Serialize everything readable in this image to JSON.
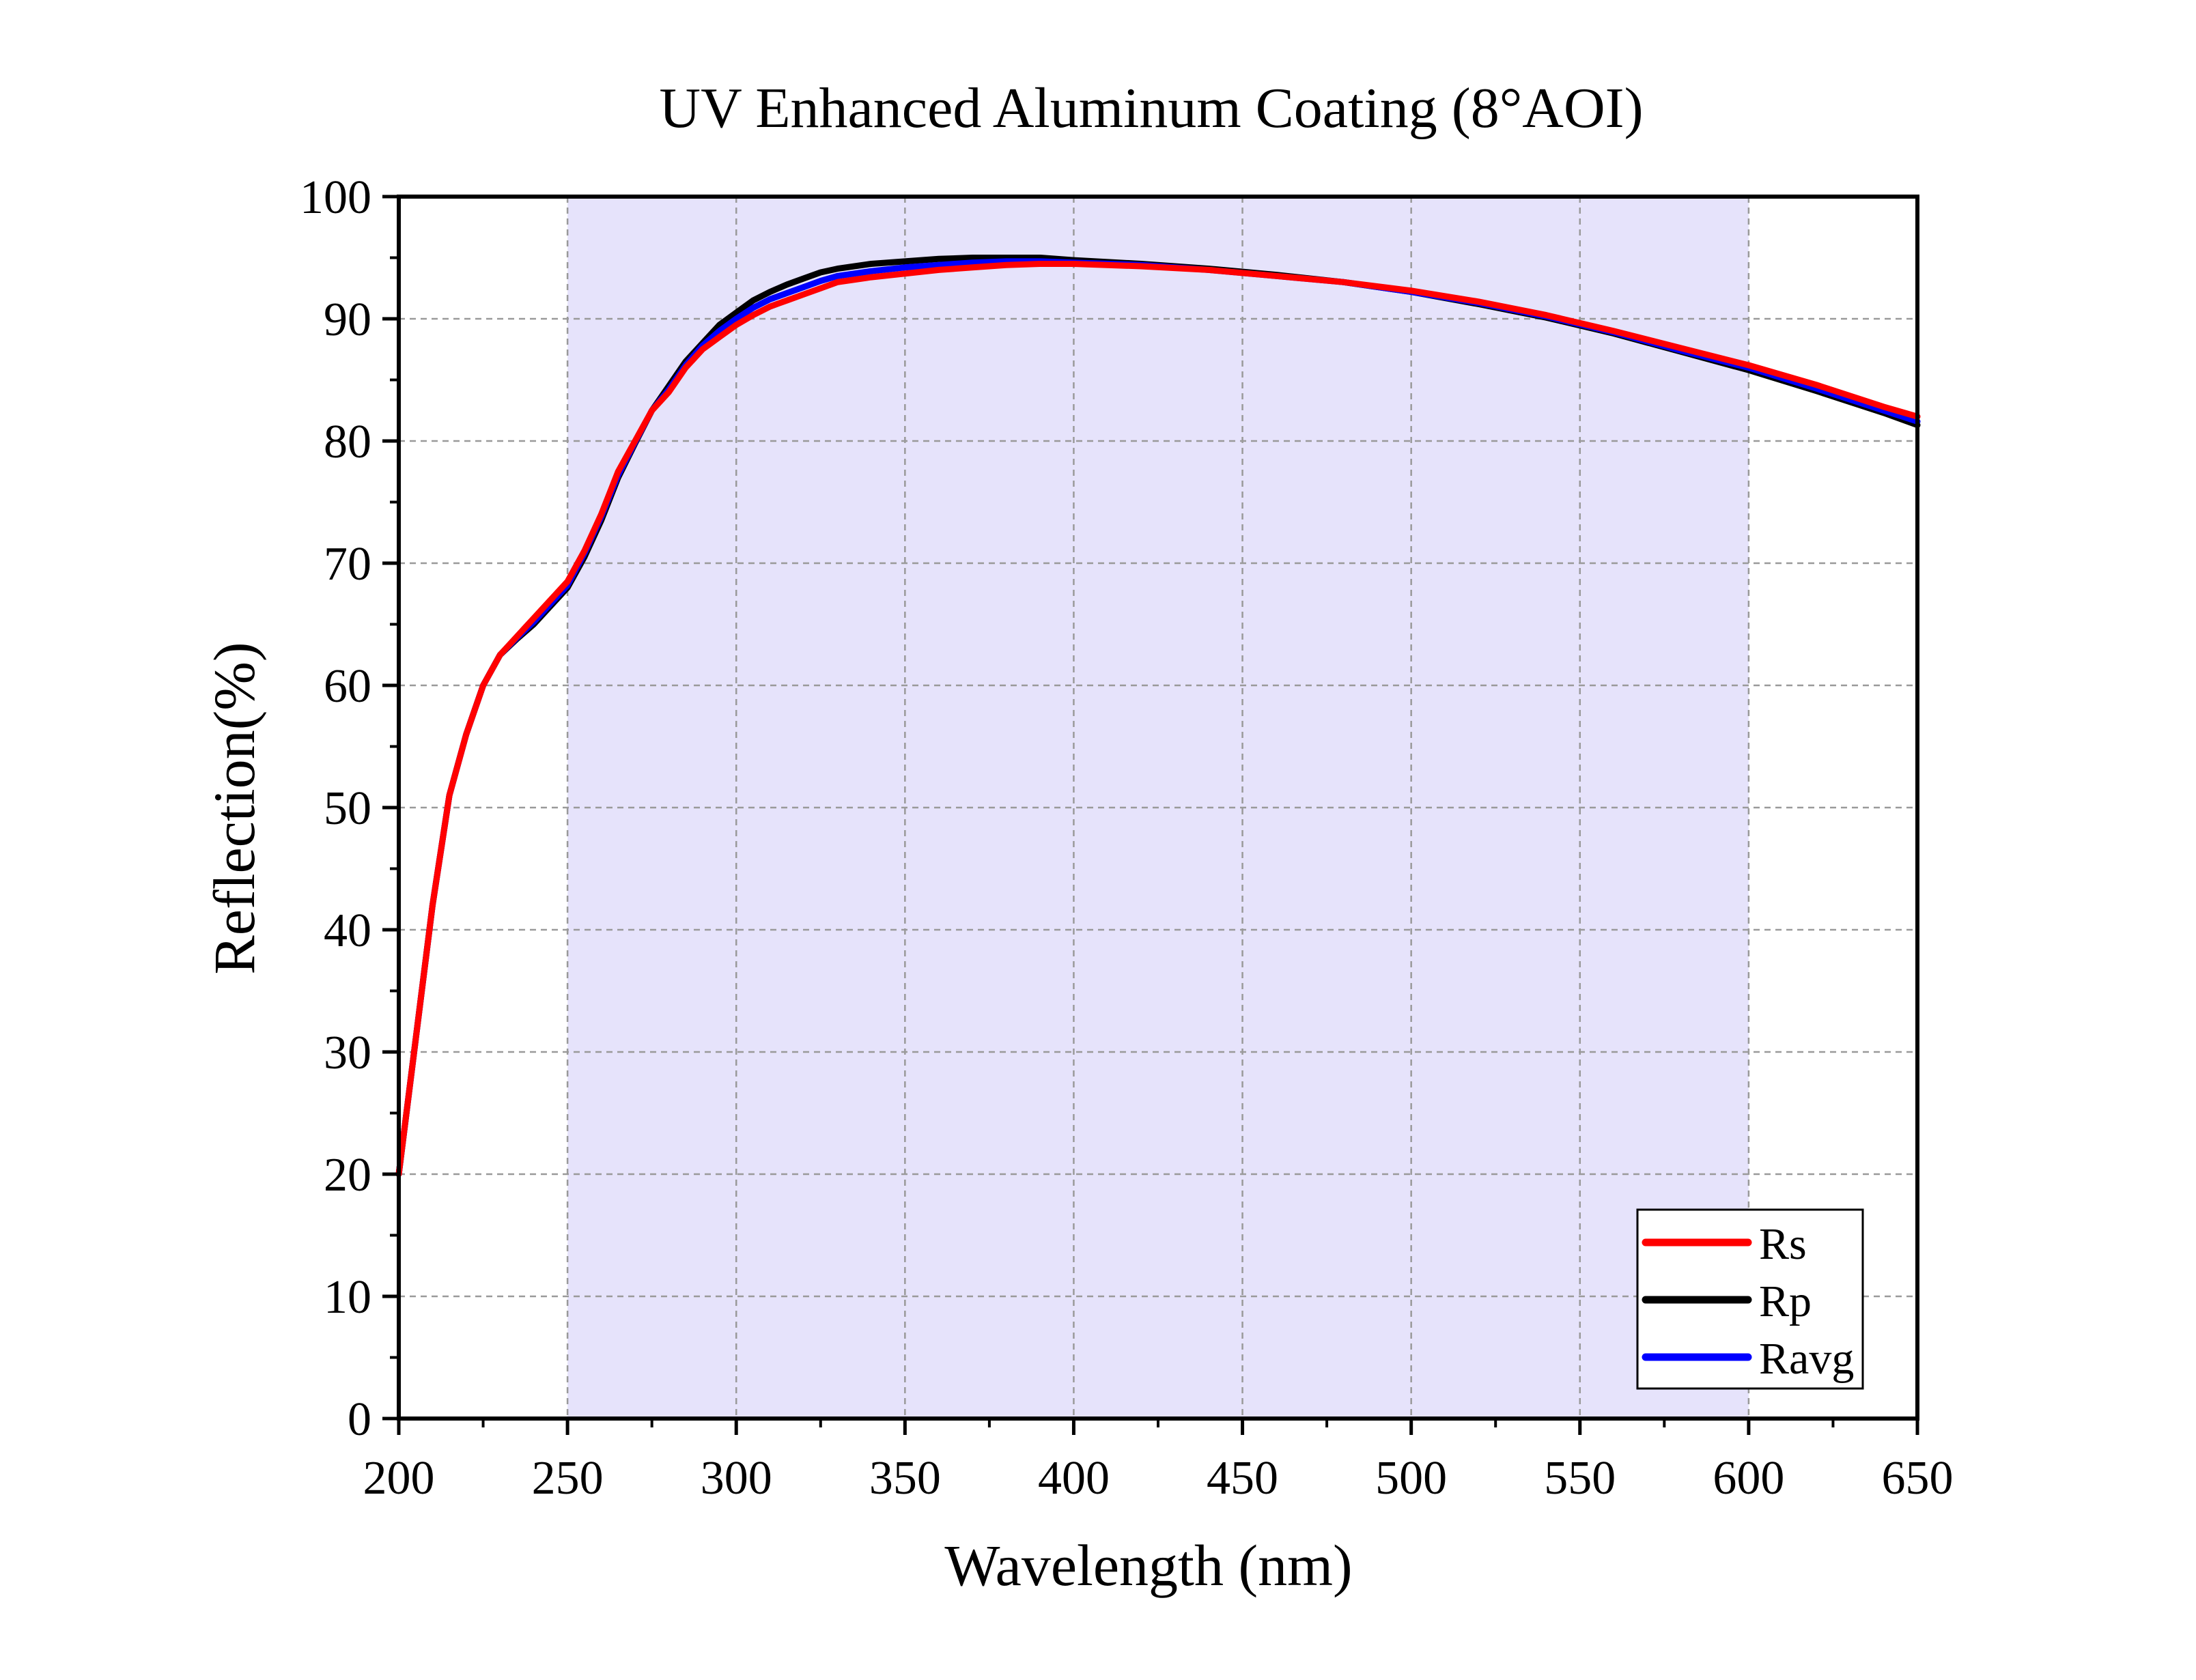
{
  "chart_data": {
    "type": "line",
    "title": "UV Enhanced Aluminum Coating (8°AOI)",
    "xlabel": "Wavelength (nm)",
    "ylabel": "Reflection(%)",
    "xlim": [
      200,
      650
    ],
    "ylim": [
      0,
      100
    ],
    "xticks": [
      200,
      250,
      300,
      350,
      400,
      450,
      500,
      550,
      600,
      650
    ],
    "yticks": [
      0,
      10,
      20,
      30,
      40,
      50,
      60,
      70,
      80,
      90,
      100
    ],
    "xtick_labels": [
      "200",
      "250",
      "300",
      "350",
      "400",
      "450",
      "500",
      "550",
      "600",
      "650"
    ],
    "ytick_labels": [
      "0",
      "10",
      "20",
      "30",
      "40",
      "50",
      "60",
      "70",
      "80",
      "90",
      "100"
    ],
    "grid": true,
    "legend_position": "bottom-right",
    "highlight_band": {
      "x_from": 250,
      "x_to": 600,
      "color": "#e6e3fb"
    },
    "series": [
      {
        "name": "Rs",
        "color": "#ff0000",
        "x": [
          200,
          205,
          210,
          215,
          220,
          225,
          230,
          235,
          240,
          245,
          250,
          255,
          260,
          265,
          270,
          275,
          280,
          285,
          290,
          295,
          300,
          305,
          310,
          315,
          320,
          325,
          330,
          340,
          350,
          360,
          370,
          380,
          390,
          400,
          420,
          440,
          460,
          480,
          500,
          520,
          540,
          560,
          580,
          600,
          620,
          640,
          650
        ],
        "y": [
          20,
          31,
          42,
          51,
          56,
          60,
          62.5,
          64,
          65.5,
          67,
          68.5,
          71,
          74,
          77.5,
          80,
          82.5,
          84,
          86,
          87.5,
          88.5,
          89.5,
          90.3,
          91,
          91.5,
          92,
          92.5,
          93,
          93.4,
          93.7,
          94,
          94.2,
          94.4,
          94.5,
          94.5,
          94.3,
          94,
          93.5,
          93,
          92.3,
          91.4,
          90.3,
          89,
          87.6,
          86.2,
          84.6,
          82.8,
          82
        ]
      },
      {
        "name": "Rp",
        "color": "#000000",
        "x": [
          200,
          205,
          210,
          215,
          220,
          225,
          230,
          235,
          240,
          245,
          250,
          255,
          260,
          265,
          270,
          275,
          280,
          285,
          290,
          295,
          300,
          305,
          310,
          315,
          320,
          325,
          330,
          340,
          350,
          360,
          370,
          380,
          390,
          400,
          420,
          440,
          460,
          480,
          500,
          520,
          540,
          560,
          580,
          600,
          620,
          640,
          650
        ],
        "y": [
          20,
          31,
          42,
          51,
          56,
          60,
          62.5,
          63.8,
          65,
          66.5,
          68,
          70.5,
          73.5,
          77,
          79.8,
          82.5,
          84.5,
          86.5,
          88,
          89.5,
          90.5,
          91.5,
          92.2,
          92.8,
          93.3,
          93.8,
          94.1,
          94.5,
          94.7,
          94.9,
          95,
          95,
          95,
          94.8,
          94.5,
          94.1,
          93.6,
          93,
          92.2,
          91.2,
          90.1,
          88.8,
          87.3,
          85.8,
          84.1,
          82.3,
          81.3
        ]
      },
      {
        "name": "Ravg",
        "color": "#0000ff",
        "x": [
          200,
          205,
          210,
          215,
          220,
          225,
          230,
          235,
          240,
          245,
          250,
          255,
          260,
          265,
          270,
          275,
          280,
          285,
          290,
          295,
          300,
          305,
          310,
          315,
          320,
          325,
          330,
          340,
          350,
          360,
          370,
          380,
          390,
          400,
          420,
          440,
          460,
          480,
          500,
          520,
          540,
          560,
          580,
          600,
          620,
          640,
          650
        ],
        "y": [
          20,
          31,
          42,
          51,
          56,
          60,
          62.5,
          63.9,
          65.2,
          66.7,
          68.2,
          70.8,
          73.8,
          77.2,
          79.9,
          82.5,
          84.2,
          86.2,
          87.8,
          89,
          90,
          90.9,
          91.6,
          92.1,
          92.6,
          93.1,
          93.5,
          93.9,
          94.2,
          94.4,
          94.6,
          94.7,
          94.7,
          94.6,
          94.4,
          94,
          93.5,
          93,
          92.2,
          91.3,
          90.2,
          88.9,
          87.4,
          86,
          84.3,
          82.5,
          81.6
        ]
      }
    ]
  }
}
